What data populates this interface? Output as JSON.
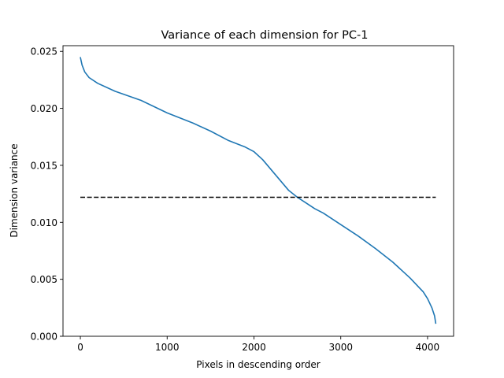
{
  "chart_data": {
    "type": "line",
    "title": "Variance of each dimension for PC-1",
    "xlabel": "Pixels in descending order",
    "ylabel": "Dimension variance",
    "xlim": [
      -200,
      4300
    ],
    "ylim": [
      0,
      0.0255
    ],
    "xticks": [
      0,
      1000,
      2000,
      3000,
      4000
    ],
    "xtick_labels": [
      "0",
      "1000",
      "2000",
      "3000",
      "4000"
    ],
    "yticks": [
      0,
      0.005,
      0.01,
      0.015,
      0.02,
      0.025
    ],
    "ytick_labels": [
      "0.000",
      "0.005",
      "0.010",
      "0.015",
      "0.020",
      "0.025"
    ],
    "grid": false,
    "series": [
      {
        "color": "#1f77b4",
        "style": "solid",
        "x": [
          0,
          20,
          50,
          100,
          200,
          400,
          700,
          1000,
          1300,
          1500,
          1700,
          1900,
          2000,
          2100,
          2200,
          2300,
          2400,
          2500,
          2600,
          2700,
          2800,
          3000,
          3200,
          3400,
          3600,
          3800,
          3900,
          3950,
          4000,
          4050,
          4080,
          4095
        ],
        "y": [
          0.0245,
          0.0238,
          0.0232,
          0.0227,
          0.0222,
          0.0215,
          0.0207,
          0.0196,
          0.0187,
          0.018,
          0.0172,
          0.0166,
          0.0162,
          0.0155,
          0.0146,
          0.0137,
          0.0128,
          0.0122,
          0.0117,
          0.0112,
          0.0108,
          0.0098,
          0.0088,
          0.0077,
          0.0065,
          0.0051,
          0.0043,
          0.0039,
          0.0033,
          0.0025,
          0.0018,
          0.0011
        ]
      },
      {
        "color": "#000000",
        "style": "dashed",
        "x": [
          0,
          4095
        ],
        "y": [
          0.0122,
          0.0122
        ]
      }
    ]
  }
}
